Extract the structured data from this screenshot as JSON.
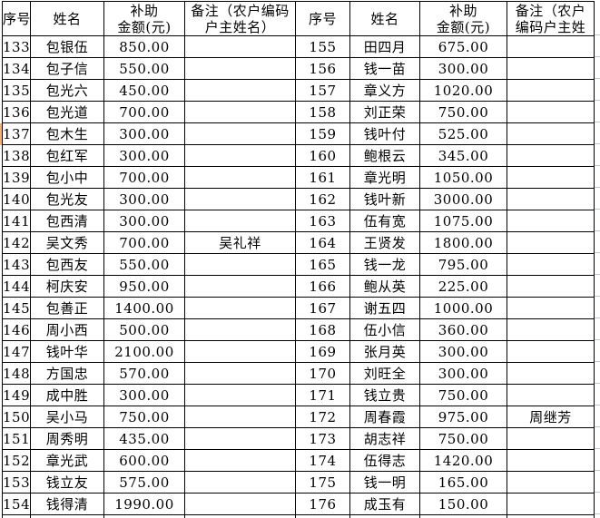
{
  "headers_left": {
    "seq": "序号",
    "name": "姓名",
    "amount_l1": "补助",
    "amount_l2": "金额(元)",
    "remark_l1": "备注（农户编码",
    "remark_l2": "户主姓名）"
  },
  "headers_right": {
    "seq": "序号",
    "name": "姓名",
    "amount_l1": "补助",
    "amount_l2": "金额(元)",
    "remark_l1": "备注（农户",
    "remark_l2": "编码户主姓"
  },
  "left_rows": [
    {
      "seq": "133",
      "name": "包银伍",
      "amount": "850.00",
      "remark": ""
    },
    {
      "seq": "134",
      "name": "包子信",
      "amount": "550.00",
      "remark": ""
    },
    {
      "seq": "135",
      "name": "包光六",
      "amount": "450.00",
      "remark": ""
    },
    {
      "seq": "136",
      "name": "包光道",
      "amount": "700.00",
      "remark": ""
    },
    {
      "seq": "137",
      "name": "包木生",
      "amount": "300.00",
      "remark": ""
    },
    {
      "seq": "138",
      "name": "包红军",
      "amount": "300.00",
      "remark": ""
    },
    {
      "seq": "139",
      "name": "包小中",
      "amount": "700.00",
      "remark": ""
    },
    {
      "seq": "140",
      "name": "包光友",
      "amount": "300.00",
      "remark": ""
    },
    {
      "seq": "141",
      "name": "包西清",
      "amount": "300.00",
      "remark": ""
    },
    {
      "seq": "142",
      "name": "吴文秀",
      "amount": "700.00",
      "remark": "吴礼祥"
    },
    {
      "seq": "143",
      "name": "包西友",
      "amount": "550.00",
      "remark": ""
    },
    {
      "seq": "144",
      "name": "柯庆安",
      "amount": "950.00",
      "remark": ""
    },
    {
      "seq": "145",
      "name": "包善正",
      "amount": "1400.00",
      "remark": ""
    },
    {
      "seq": "146",
      "name": "周小西",
      "amount": "500.00",
      "remark": ""
    },
    {
      "seq": "147",
      "name": "钱叶华",
      "amount": "2100.00",
      "remark": ""
    },
    {
      "seq": "148",
      "name": "方国忠",
      "amount": "570.00",
      "remark": ""
    },
    {
      "seq": "149",
      "name": "成中胜",
      "amount": "300.00",
      "remark": ""
    },
    {
      "seq": "150",
      "name": "吴小马",
      "amount": "750.00",
      "remark": ""
    },
    {
      "seq": "151",
      "name": "周秀明",
      "amount": "435.00",
      "remark": ""
    },
    {
      "seq": "152",
      "name": "章光武",
      "amount": "600.00",
      "remark": ""
    },
    {
      "seq": "153",
      "name": "钱立友",
      "amount": "575.00",
      "remark": ""
    },
    {
      "seq": "154",
      "name": "钱得清",
      "amount": "1990.00",
      "remark": ""
    }
  ],
  "right_rows": [
    {
      "seq": "155",
      "name": "田四月",
      "amount": "675.00",
      "remark": ""
    },
    {
      "seq": "156",
      "name": "钱一苗",
      "amount": "300.00",
      "remark": ""
    },
    {
      "seq": "157",
      "name": "章义方",
      "amount": "1020.00",
      "remark": ""
    },
    {
      "seq": "158",
      "name": "刘正荣",
      "amount": "750.00",
      "remark": ""
    },
    {
      "seq": "159",
      "name": "钱叶付",
      "amount": "525.00",
      "remark": ""
    },
    {
      "seq": "160",
      "name": "鲍根云",
      "amount": "345.00",
      "remark": ""
    },
    {
      "seq": "161",
      "name": "章光明",
      "amount": "1050.00",
      "remark": ""
    },
    {
      "seq": "162",
      "name": "钱叶新",
      "amount": "3000.00",
      "remark": ""
    },
    {
      "seq": "163",
      "name": "伍有宽",
      "amount": "1075.00",
      "remark": ""
    },
    {
      "seq": "164",
      "name": "王贤发",
      "amount": "1800.00",
      "remark": ""
    },
    {
      "seq": "165",
      "name": "钱一龙",
      "amount": "795.00",
      "remark": ""
    },
    {
      "seq": "166",
      "name": "鲍从英",
      "amount": "225.00",
      "remark": ""
    },
    {
      "seq": "167",
      "name": "谢五四",
      "amount": "1000.00",
      "remark": ""
    },
    {
      "seq": "168",
      "name": "伍小信",
      "amount": "360.00",
      "remark": ""
    },
    {
      "seq": "169",
      "name": "张月英",
      "amount": "300.00",
      "remark": ""
    },
    {
      "seq": "170",
      "name": "刘旺全",
      "amount": "300.00",
      "remark": ""
    },
    {
      "seq": "171",
      "name": "钱立贵",
      "amount": "750.00",
      "remark": ""
    },
    {
      "seq": "172",
      "name": "周春霞",
      "amount": "975.00",
      "remark": "周继芳"
    },
    {
      "seq": "173",
      "name": "胡志祥",
      "amount": "750.00",
      "remark": ""
    },
    {
      "seq": "174",
      "name": "伍得志",
      "amount": "1420.00",
      "remark": ""
    },
    {
      "seq": "175",
      "name": "钱一明",
      "amount": "165.00",
      "remark": ""
    },
    {
      "seq": "176",
      "name": "成玉有",
      "amount": "150.00",
      "remark": ""
    }
  ],
  "colors": {
    "border": "#000000",
    "cell_background": "#ffffff",
    "text": "#000000",
    "edge_marker_orange": "#f8b26a",
    "margin_gridline": "#c0c7d2"
  }
}
